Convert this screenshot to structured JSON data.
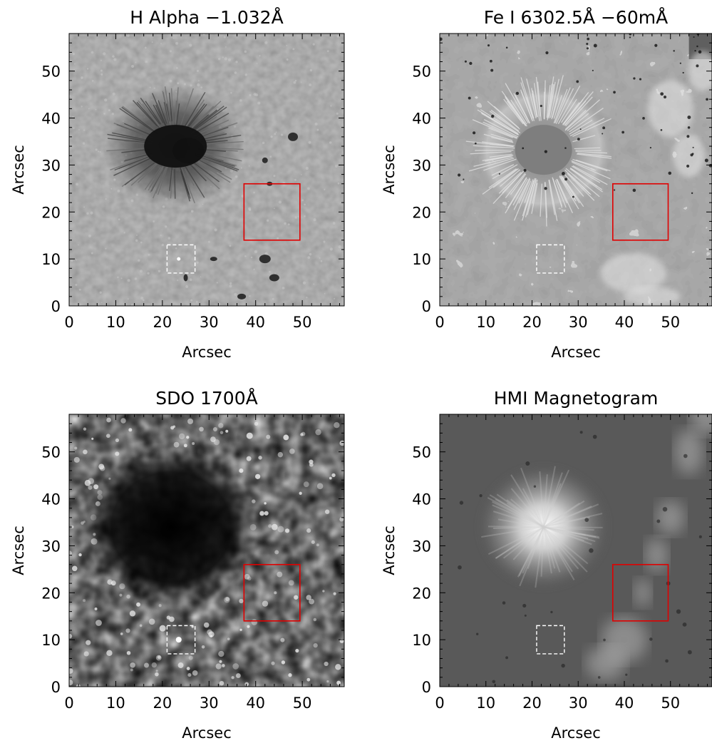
{
  "panels": [
    {
      "id": "h-alpha",
      "title": "H Alpha −1.032Å",
      "xlabel": "Arcsec",
      "ylabel": "Arcsec",
      "xticks": [
        "0",
        "10",
        "20",
        "30",
        "40",
        "50"
      ],
      "yticks": [
        "0",
        "10",
        "20",
        "30",
        "40",
        "50"
      ],
      "style": "halpha"
    },
    {
      "id": "fe-i",
      "title": "Fe I 6302.5Å −60mÅ",
      "xlabel": "Arcsec",
      "ylabel": "Arcsec",
      "xticks": [
        "0",
        "10",
        "20",
        "30",
        "40",
        "50"
      ],
      "yticks": [
        "0",
        "10",
        "20",
        "30",
        "40",
        "50"
      ],
      "style": "fe"
    },
    {
      "id": "sdo-1700",
      "title": "SDO 1700Å",
      "xlabel": "Arcsec",
      "ylabel": "Arcsec",
      "xticks": [
        "0",
        "10",
        "20",
        "30",
        "40",
        "50"
      ],
      "yticks": [
        "0",
        "10",
        "20",
        "30",
        "40",
        "50"
      ],
      "style": "sdo"
    },
    {
      "id": "hmi",
      "title": "HMI Magnetogram",
      "xlabel": "Arcsec",
      "ylabel": "Arcsec",
      "xticks": [
        "0",
        "10",
        "20",
        "30",
        "40",
        "50"
      ],
      "yticks": [
        "0",
        "10",
        "20",
        "30",
        "40",
        "50"
      ],
      "style": "hmi"
    }
  ],
  "axis_range": {
    "x": [
      0,
      59
    ],
    "y": [
      0,
      58
    ]
  },
  "regions": {
    "red_box": {
      "x": [
        37.5,
        49.5
      ],
      "y": [
        14,
        26
      ],
      "color": "#e00000"
    },
    "white_dashed_box": {
      "x": [
        21,
        27
      ],
      "y": [
        7,
        13
      ],
      "color": "#ffffff"
    }
  }
}
